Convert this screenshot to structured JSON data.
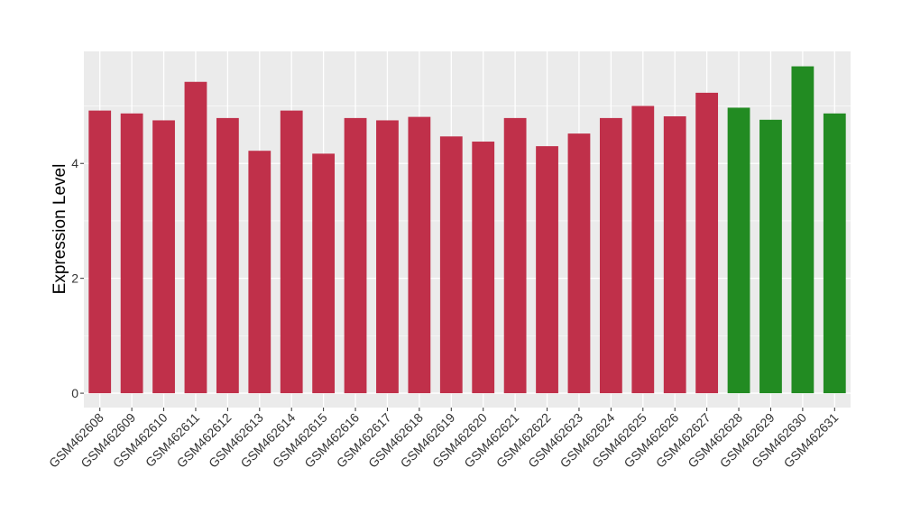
{
  "chart_data": {
    "type": "bar",
    "ylabel": "Expression Level",
    "xlabel": "",
    "ylim": [
      -0.25,
      5.95
    ],
    "yticks": [
      0,
      2,
      4
    ],
    "grid": true,
    "colors": {
      "red": "#c0304a",
      "green": "#228b22",
      "panel": "#ebebeb",
      "grid": "#ffffff"
    },
    "categories": [
      "GSM462608",
      "GSM462609",
      "GSM462610",
      "GSM462611",
      "GSM462612",
      "GSM462613",
      "GSM462614",
      "GSM462615",
      "GSM462616",
      "GSM462617",
      "GSM462618",
      "GSM462619",
      "GSM462620",
      "GSM462621",
      "GSM462622",
      "GSM462623",
      "GSM462624",
      "GSM462625",
      "GSM462626",
      "GSM462627",
      "GSM462628",
      "GSM462629",
      "GSM462630",
      "GSM462631"
    ],
    "values": [
      4.92,
      4.87,
      4.75,
      5.42,
      4.79,
      4.22,
      4.92,
      4.17,
      4.79,
      4.75,
      4.81,
      4.47,
      4.38,
      4.79,
      4.3,
      4.52,
      4.79,
      5.0,
      4.82,
      5.23,
      4.97,
      4.76,
      5.69,
      4.87
    ],
    "bar_colors": [
      "red",
      "red",
      "red",
      "red",
      "red",
      "red",
      "red",
      "red",
      "red",
      "red",
      "red",
      "red",
      "red",
      "red",
      "red",
      "red",
      "red",
      "red",
      "red",
      "red",
      "green",
      "green",
      "green",
      "green"
    ]
  }
}
